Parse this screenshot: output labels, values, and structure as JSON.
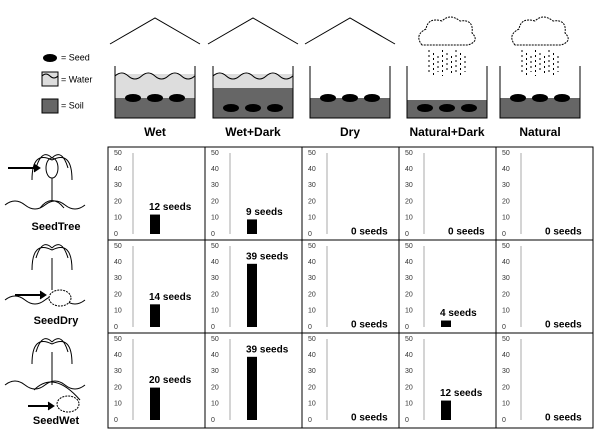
{
  "legend": [
    "= Seed",
    "= Water",
    "= Soil"
  ],
  "conditions": [
    "Wet",
    "Wet+Dark",
    "Dry",
    "Natural+Dark",
    "Natural"
  ],
  "seed_types": [
    "SeedTree",
    "SeedDry",
    "SeedWet"
  ],
  "chart_data": [
    {
      "type": "bar",
      "values": [
        12
      ],
      "value_labels": [
        "12 seeds"
      ],
      "color": "#000000",
      "ylim": [
        0,
        50
      ],
      "yticks": [
        0,
        10,
        20,
        30,
        40,
        50
      ]
    },
    {
      "type": "bar",
      "values": [
        9
      ],
      "value_labels": [
        "9 seeds"
      ],
      "color": "#000000",
      "ylim": [
        0,
        50
      ],
      "yticks": [
        0,
        10,
        20,
        30,
        40,
        50
      ]
    },
    {
      "type": "bar",
      "values": [
        0
      ],
      "value_labels": [
        "0 seeds"
      ],
      "color": "#000000",
      "ylim": [
        0,
        50
      ],
      "yticks": [
        0,
        10,
        20,
        30,
        40,
        50
      ]
    },
    {
      "type": "bar",
      "values": [
        0
      ],
      "value_labels": [
        "0 seeds"
      ],
      "color": "#000000",
      "ylim": [
        0,
        50
      ],
      "yticks": [
        0,
        10,
        20,
        30,
        40,
        50
      ]
    },
    {
      "type": "bar",
      "values": [
        0
      ],
      "value_labels": [
        "0 seeds"
      ],
      "color": "#000000",
      "ylim": [
        0,
        50
      ],
      "yticks": [
        0,
        10,
        20,
        30,
        40,
        50
      ]
    },
    {
      "type": "bar",
      "values": [
        14
      ],
      "value_labels": [
        "14 seeds"
      ],
      "color": "#000000",
      "ylim": [
        0,
        50
      ],
      "yticks": [
        0,
        10,
        20,
        30,
        40,
        50
      ]
    },
    {
      "type": "bar",
      "values": [
        39
      ],
      "value_labels": [
        "39 seeds"
      ],
      "color": "#000000",
      "ylim": [
        0,
        50
      ],
      "yticks": [
        0,
        10,
        20,
        30,
        40,
        50
      ]
    },
    {
      "type": "bar",
      "values": [
        0
      ],
      "value_labels": [
        "0 seeds"
      ],
      "color": "#000000",
      "ylim": [
        0,
        50
      ],
      "yticks": [
        0,
        10,
        20,
        30,
        40,
        50
      ]
    },
    {
      "type": "bar",
      "values": [
        4
      ],
      "value_labels": [
        "4 seeds"
      ],
      "color": "#000000",
      "ylim": [
        0,
        50
      ],
      "yticks": [
        0,
        10,
        20,
        30,
        40,
        50
      ]
    },
    {
      "type": "bar",
      "values": [
        0
      ],
      "value_labels": [
        "0 seeds"
      ],
      "color": "#000000",
      "ylim": [
        0,
        50
      ],
      "yticks": [
        0,
        10,
        20,
        30,
        40,
        50
      ]
    },
    {
      "type": "bar",
      "values": [
        20
      ],
      "value_labels": [
        "20 seeds"
      ],
      "color": "#000000",
      "ylim": [
        0,
        50
      ],
      "yticks": [
        0,
        10,
        20,
        30,
        40,
        50
      ]
    },
    {
      "type": "bar",
      "values": [
        39
      ],
      "value_labels": [
        "39 seeds"
      ],
      "color": "#000000",
      "ylim": [
        0,
        50
      ],
      "yticks": [
        0,
        10,
        20,
        30,
        40,
        50
      ]
    },
    {
      "type": "bar",
      "values": [
        0
      ],
      "value_labels": [
        "0 seeds"
      ],
      "color": "#000000",
      "ylim": [
        0,
        50
      ],
      "yticks": [
        0,
        10,
        20,
        30,
        40,
        50
      ]
    },
    {
      "type": "bar",
      "values": [
        12
      ],
      "value_labels": [
        "12 seeds"
      ],
      "color": "#000000",
      "ylim": [
        0,
        50
      ],
      "yticks": [
        0,
        10,
        20,
        30,
        40,
        50
      ]
    },
    {
      "type": "bar",
      "values": [
        0
      ],
      "value_labels": [
        "0 seeds"
      ],
      "color": "#000000",
      "ylim": [
        0,
        50
      ],
      "yticks": [
        0,
        10,
        20,
        30,
        40,
        50
      ]
    }
  ]
}
